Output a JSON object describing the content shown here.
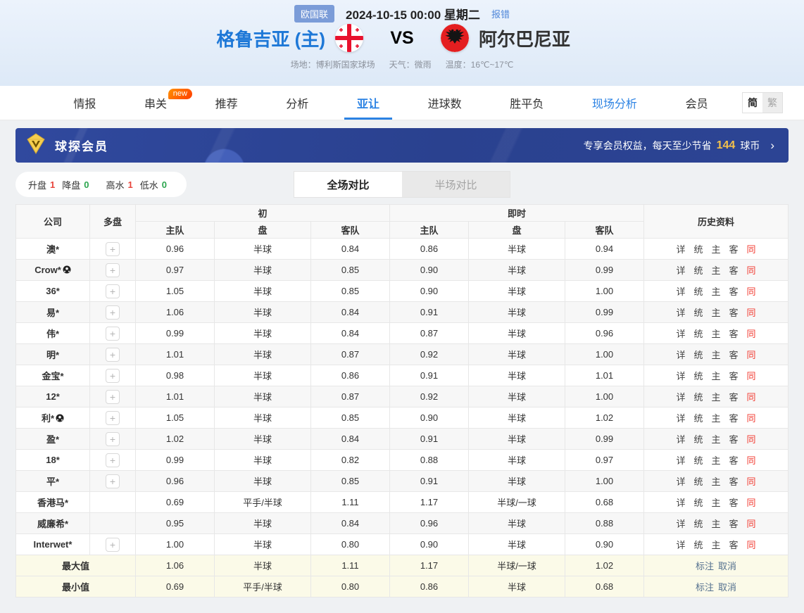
{
  "header": {
    "league_badge": "欧国联",
    "match_datetime": "2024-10-15 00:00 星期二",
    "report_error_link": "报错",
    "home_team": "格鲁吉亚 (主)",
    "vs_label": "VS",
    "away_team": "阿尔巴尼亚",
    "venue": "场地：博利斯国家球场",
    "weather": "天气：微雨",
    "temperature": "温度：16℃~17℃"
  },
  "nav": {
    "tabs": [
      {
        "label": "情报"
      },
      {
        "label": "串关",
        "badge": "new"
      },
      {
        "label": "推荐"
      },
      {
        "label": "分析"
      },
      {
        "label": "亚让",
        "active": true
      },
      {
        "label": "进球数"
      },
      {
        "label": "胜平负"
      },
      {
        "label": "现场分析",
        "highlight": true
      },
      {
        "label": "会员"
      }
    ],
    "lang_simplified": "简",
    "lang_traditional": "繁"
  },
  "vip_banner": {
    "title": "球探会员",
    "promo_prefix": "专享会员权益，每天至少节省",
    "promo_value": "144",
    "promo_suffix": "球币",
    "arrow": "›"
  },
  "filters": {
    "items": [
      {
        "label": "升盘",
        "value": "1",
        "tone": "red"
      },
      {
        "label": "降盘",
        "value": "0",
        "tone": "green"
      },
      {
        "label": "高水",
        "value": "1",
        "tone": "red"
      },
      {
        "label": "低水",
        "value": "0",
        "tone": "green"
      }
    ]
  },
  "compare_toggle": {
    "full": "全场对比",
    "half": "半场对比"
  },
  "table": {
    "headers": {
      "company": "公司",
      "multi": "多盘",
      "initial": "初",
      "live": "即时",
      "history": "历史资料",
      "home": "主队",
      "handicap": "盘",
      "away": "客队"
    },
    "history_links": [
      "详",
      "统",
      "主",
      "客",
      "同"
    ],
    "summary_actions": [
      "标注",
      "取消"
    ],
    "rows": [
      {
        "name": "澳*",
        "ball": false,
        "multi": true,
        "init": [
          "0.96",
          "半球",
          "0.84"
        ],
        "live": [
          "0.86",
          "半球",
          "0.94"
        ]
      },
      {
        "name": "Crow*",
        "ball": true,
        "multi": true,
        "init": [
          "0.97",
          "半球",
          "0.85"
        ],
        "live": [
          "0.90",
          "半球",
          "0.99"
        ]
      },
      {
        "name": "36*",
        "ball": false,
        "multi": true,
        "init": [
          "1.05",
          "半球",
          "0.85"
        ],
        "live": [
          "0.90",
          "半球",
          "1.00"
        ]
      },
      {
        "name": "易*",
        "ball": false,
        "multi": true,
        "init": [
          "1.06",
          "半球",
          "0.84"
        ],
        "live": [
          "0.91",
          "半球",
          "0.99"
        ]
      },
      {
        "name": "伟*",
        "ball": false,
        "multi": true,
        "init": [
          "0.99",
          "半球",
          "0.84"
        ],
        "live": [
          "0.87",
          "半球",
          "0.96"
        ]
      },
      {
        "name": "明*",
        "ball": false,
        "multi": true,
        "init": [
          "1.01",
          "半球",
          "0.87"
        ],
        "live": [
          "0.92",
          "半球",
          "1.00"
        ]
      },
      {
        "name": "金宝*",
        "ball": false,
        "multi": true,
        "init": [
          "0.98",
          "半球",
          "0.86"
        ],
        "live": [
          "0.91",
          "半球",
          "1.01"
        ]
      },
      {
        "name": "12*",
        "ball": false,
        "multi": true,
        "init": [
          "1.01",
          "半球",
          "0.87"
        ],
        "live": [
          "0.92",
          "半球",
          "1.00"
        ]
      },
      {
        "name": "利*",
        "ball": true,
        "multi": true,
        "init": [
          "1.05",
          "半球",
          "0.85"
        ],
        "live": [
          "0.90",
          "半球",
          "1.02"
        ]
      },
      {
        "name": "盈*",
        "ball": false,
        "multi": true,
        "init": [
          "1.02",
          "半球",
          "0.84"
        ],
        "live": [
          "0.91",
          "半球",
          "0.99"
        ]
      },
      {
        "name": "18*",
        "ball": false,
        "multi": true,
        "init": [
          "0.99",
          "半球",
          "0.82"
        ],
        "live": [
          "0.88",
          "半球",
          "0.97"
        ]
      },
      {
        "name": "平*",
        "ball": false,
        "multi": true,
        "init": [
          "0.96",
          "半球",
          "0.85"
        ],
        "live": [
          "0.91",
          "半球",
          "1.00"
        ]
      },
      {
        "name": "香港马*",
        "ball": false,
        "multi": false,
        "init": [
          "0.69",
          "平手/半球",
          "1.11"
        ],
        "live": [
          "1.17",
          "半球/一球",
          "0.68"
        ]
      },
      {
        "name": "威廉希*",
        "ball": false,
        "multi": false,
        "init": [
          "0.95",
          "半球",
          "0.84"
        ],
        "live": [
          "0.96",
          "半球",
          "0.88"
        ]
      },
      {
        "name": "Interwet*",
        "ball": false,
        "multi": true,
        "init": [
          "1.00",
          "半球",
          "0.80"
        ],
        "live": [
          "0.90",
          "半球",
          "0.90"
        ]
      }
    ],
    "summary_rows": [
      {
        "name": "最大值",
        "init": [
          "1.06",
          "半球",
          "1.11"
        ],
        "live": [
          "1.17",
          "半球/一球",
          "1.02"
        ]
      },
      {
        "name": "最小值",
        "init": [
          "0.69",
          "平手/半球",
          "0.80"
        ],
        "live": [
          "0.86",
          "半球",
          "0.68"
        ]
      }
    ]
  },
  "colors": {
    "accent_blue": "#2b82e3",
    "banner_bg": "#2c4494",
    "gold": "#f3c04b",
    "up_red": "#e8453c",
    "down_green": "#2ca54e",
    "history_red": "#f23b31"
  }
}
